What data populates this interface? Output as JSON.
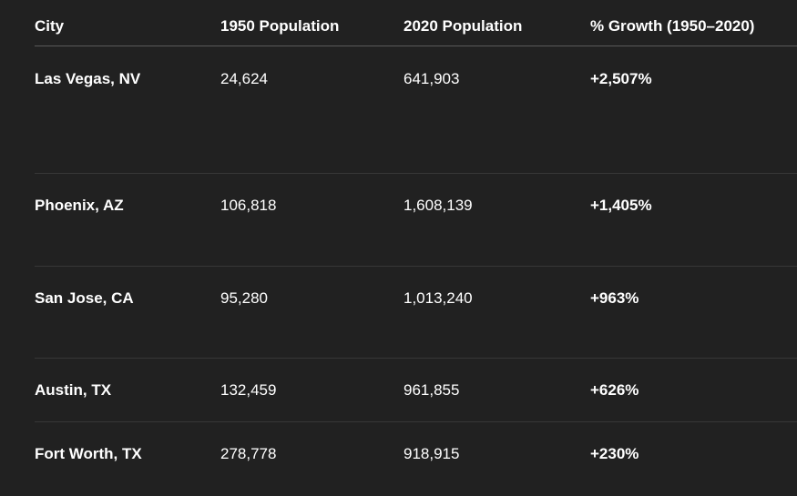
{
  "theme": {
    "background": "#212121",
    "text_color": "#ffffff",
    "header_divider_color": "#5a5a5a",
    "row_divider_color": "#373737"
  },
  "table": {
    "columns": [
      "City",
      "1950 Population",
      "2020 Population",
      "% Growth (1950–2020)"
    ],
    "rows": [
      {
        "city": "Las Vegas, NV",
        "pop_1950": "24,624",
        "pop_2020": "641,903",
        "growth": "+2,507%"
      },
      {
        "city": "Phoenix, AZ",
        "pop_1950": "106,818",
        "pop_2020": "1,608,139",
        "growth": "+1,405%"
      },
      {
        "city": "San Jose, CA",
        "pop_1950": "95,280",
        "pop_2020": "1,013,240",
        "growth": "+963%"
      },
      {
        "city": "Austin, TX",
        "pop_1950": "132,459",
        "pop_2020": "961,855",
        "growth": "+626%"
      },
      {
        "city": "Fort Worth, TX",
        "pop_1950": "278,778",
        "pop_2020": "918,915",
        "growth": "+230%"
      }
    ]
  },
  "chart_data": {
    "type": "table",
    "title": "",
    "columns": [
      "City",
      "1950 Population",
      "2020 Population",
      "% Growth (1950–2020)"
    ],
    "rows": [
      {
        "city": "Las Vegas, NV",
        "population_1950": 24624,
        "population_2020": 641903,
        "pct_growth_1950_2020": 2507
      },
      {
        "city": "Phoenix, AZ",
        "population_1950": 106818,
        "population_2020": 1608139,
        "pct_growth_1950_2020": 1405
      },
      {
        "city": "San Jose, CA",
        "population_1950": 95280,
        "population_2020": 1013240,
        "pct_growth_1950_2020": 963
      },
      {
        "city": "Austin, TX",
        "population_1950": 132459,
        "population_2020": 961855,
        "pct_growth_1950_2020": 626
      },
      {
        "city": "Fort Worth, TX",
        "population_1950": 278778,
        "population_2020": 918915,
        "pct_growth_1950_2020": 230
      }
    ]
  }
}
